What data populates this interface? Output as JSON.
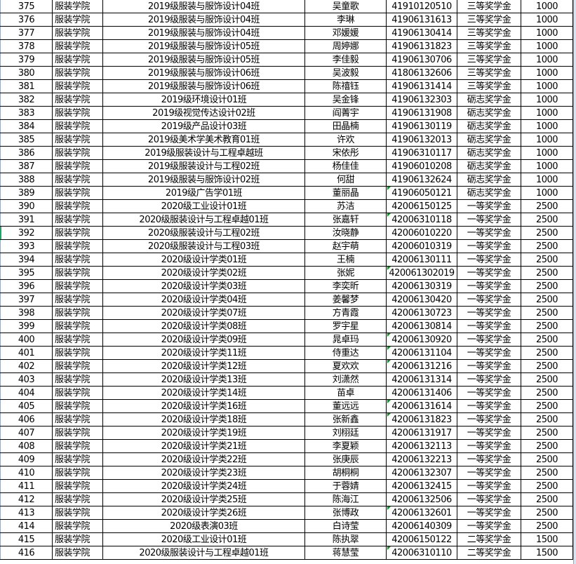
{
  "colors": {
    "grid": "#000000",
    "note_marker": "#1a8a2a",
    "selection": "#21a366"
  },
  "rows": [
    {
      "no": "375",
      "college": "服装学院",
      "class": "2019级服装与服饰设计04班",
      "name": "吴童歌",
      "id": "41910120510",
      "award": "三等奖学金",
      "amount": "1000",
      "flag": false
    },
    {
      "no": "376",
      "college": "服装学院",
      "class": "2019级服装与服饰设计04班",
      "name": "李琳",
      "id": "41906131613",
      "award": "三等奖学金",
      "amount": "1000",
      "flag": false
    },
    {
      "no": "377",
      "college": "服装学院",
      "class": "2019级服装与服饰设计04班",
      "name": "邓媛媛",
      "id": "41906130414",
      "award": "三等奖学金",
      "amount": "1000",
      "flag": false
    },
    {
      "no": "378",
      "college": "服装学院",
      "class": "2019级服装与服饰设计05班",
      "name": "周婷娜",
      "id": "41906131823",
      "award": "三等奖学金",
      "amount": "1000",
      "flag": false
    },
    {
      "no": "379",
      "college": "服装学院",
      "class": "2019级服装与服饰设计05班",
      "name": "李佳毅",
      "id": "41906130706",
      "award": "三等奖学金",
      "amount": "1000",
      "flag": false
    },
    {
      "no": "380",
      "college": "服装学院",
      "class": "2019级服装与服饰设计06班",
      "name": "吴波毅",
      "id": "41806132606",
      "award": "三等奖学金",
      "amount": "1000",
      "flag": false
    },
    {
      "no": "381",
      "college": "服装学院",
      "class": "2019级服装与服饰设计06班",
      "name": "陈禧钰",
      "id": "41906131414",
      "award": "三等奖学金",
      "amount": "1000",
      "flag": false
    },
    {
      "no": "382",
      "college": "服装学院",
      "class": "2019级环境设计01班",
      "name": "吴金锋",
      "id": "41906132303",
      "award": "砺志奖学金",
      "amount": "1000",
      "flag": false
    },
    {
      "no": "383",
      "college": "服装学院",
      "class": "2019级视觉传达设计02班",
      "name": "阎菁宇",
      "id": "41906131908",
      "award": "砺志奖学金",
      "amount": "1000",
      "flag": false
    },
    {
      "no": "384",
      "college": "服装学院",
      "class": "2019级产品设计03班",
      "name": "田晶楠",
      "id": "41906130119",
      "award": "砺志奖学金",
      "amount": "1000",
      "flag": false
    },
    {
      "no": "385",
      "college": "服装学院",
      "class": "2019级美术学美术教育01班",
      "name": "许欢",
      "id": "41906132013",
      "award": "砺志奖学金",
      "amount": "1000",
      "flag": false
    },
    {
      "no": "386",
      "college": "服装学院",
      "class": "2019级服装设计与工程卓越班",
      "name": "宋依彤",
      "id": "41906310117",
      "award": "砺志奖学金",
      "amount": "1000",
      "flag": false
    },
    {
      "no": "387",
      "college": "服装学院",
      "class": "2019级服装设计与工程02班",
      "name": "杨佳佳",
      "id": "41906010208",
      "award": "砺志奖学金",
      "amount": "1000",
      "flag": false
    },
    {
      "no": "388",
      "college": "服装学院",
      "class": "2019级服装与服饰设计02班",
      "name": "何甜",
      "id": "41906132624",
      "award": "砺志奖学金",
      "amount": "1000",
      "flag": false
    },
    {
      "no": "389",
      "college": "服装学院",
      "class": "2019级广告学01班",
      "name": "董丽晶",
      "id": "41906050121",
      "award": "砺志奖学金",
      "amount": "1000",
      "flag": true
    },
    {
      "no": "390",
      "college": "服装学院",
      "class": "2020级工业设计01班",
      "name": "苏洁",
      "id": "42006150125",
      "award": "一等奖学金",
      "amount": "2500",
      "flag": false
    },
    {
      "no": "391",
      "college": "服装学院",
      "class": "2020级服装设计与工程卓越01班",
      "name": "张嘉轩",
      "id": "42006310118",
      "award": "一等奖学金",
      "amount": "2500",
      "flag": true
    },
    {
      "no": "392",
      "college": "服装学院",
      "class": "2020级服装设计与工程02班",
      "name": "汝晓静",
      "id": "42006010220",
      "award": "一等奖学金",
      "amount": "2500",
      "flag": false
    },
    {
      "no": "393",
      "college": "服装学院",
      "class": "2020级服装设计与工程03班",
      "name": "赵宇萌",
      "id": "42006010319",
      "award": "一等奖学金",
      "amount": "2500",
      "flag": false
    },
    {
      "no": "394",
      "college": "服装学院",
      "class": "2020级设计学类01班",
      "name": "王楠",
      "id": "42006130111",
      "award": "一等奖学金",
      "amount": "2500",
      "flag": false
    },
    {
      "no": "395",
      "college": "服装学院",
      "class": "2020级设计学类02班",
      "name": "张妮",
      "id": "420061302019",
      "award": "一等奖学金",
      "amount": "2500",
      "flag": true
    },
    {
      "no": "396",
      "college": "服装学院",
      "class": "2020级设计学类03班",
      "name": "李奕昕",
      "id": "42006130319",
      "award": "一等奖学金",
      "amount": "2500",
      "flag": false
    },
    {
      "no": "397",
      "college": "服装学院",
      "class": "2020级设计学类04班",
      "name": "姜馨梦",
      "id": "42006130420",
      "award": "一等奖学金",
      "amount": "2500",
      "flag": false
    },
    {
      "no": "398",
      "college": "服装学院",
      "class": "2020级设计学类07班",
      "name": "方青霞",
      "id": "42006130723",
      "award": "一等奖学金",
      "amount": "2500",
      "flag": false
    },
    {
      "no": "399",
      "college": "服装学院",
      "class": "2020级设计学类08班",
      "name": "罗宇星",
      "id": "42006130814",
      "award": "一等奖学金",
      "amount": "2500",
      "flag": false
    },
    {
      "no": "400",
      "college": "服装学院",
      "class": "2020级设计学类09班",
      "name": "晁卓玛",
      "id": "42006130920",
      "award": "一等奖学金",
      "amount": "2500",
      "flag": true
    },
    {
      "no": "401",
      "college": "服装学院",
      "class": "2020级设计学类11班",
      "name": "侍重达",
      "id": "42006131104",
      "award": "一等奖学金",
      "amount": "2500",
      "flag": true
    },
    {
      "no": "402",
      "college": "服装学院",
      "class": "2020级设计学类12班",
      "name": "夏欢欢",
      "id": "42006131216",
      "award": "一等奖学金",
      "amount": "2500",
      "flag": true
    },
    {
      "no": "403",
      "college": "服装学院",
      "class": "2020级设计学类13班",
      "name": "刘潇然",
      "id": "42006131314",
      "award": "一等奖学金",
      "amount": "2500",
      "flag": false
    },
    {
      "no": "404",
      "college": "服装学院",
      "class": "2020级设计学类14班",
      "name": "苗卓",
      "id": "42006131406",
      "award": "一等奖学金",
      "amount": "2500",
      "flag": false
    },
    {
      "no": "405",
      "college": "服装学院",
      "class": "2020级设计学类16班",
      "name": "董远远",
      "id": "42006131614",
      "award": "一等奖学金",
      "amount": "2500",
      "flag": true
    },
    {
      "no": "406",
      "college": "服装学院",
      "class": "2020级设计学类18班",
      "name": "张新鑫",
      "id": "42006131823",
      "award": "一等奖学金",
      "amount": "2500",
      "flag": true
    },
    {
      "no": "407",
      "college": "服装学院",
      "class": "2020级设计学类19班",
      "name": "刘栩廷",
      "id": "42006131917",
      "award": "一等奖学金",
      "amount": "2500",
      "flag": false
    },
    {
      "no": "408",
      "college": "服装学院",
      "class": "2020级设计学类21班",
      "name": "李夏颖",
      "id": "42006132113",
      "award": "一等奖学金",
      "amount": "2500",
      "flag": false
    },
    {
      "no": "409",
      "college": "服装学院",
      "class": "2020级设计学类22班",
      "name": "张庚辰",
      "id": "42006132213",
      "award": "一等奖学金",
      "amount": "2500",
      "flag": false
    },
    {
      "no": "410",
      "college": "服装学院",
      "class": "2020级设计学类23班",
      "name": "胡桐桐",
      "id": "42006132307",
      "award": "一等奖学金",
      "amount": "2500",
      "flag": false
    },
    {
      "no": "411",
      "college": "服装学院",
      "class": "2020级设计学类24班",
      "name": "于蓉婧",
      "id": "42006132415",
      "award": "一等奖学金",
      "amount": "2500",
      "flag": false
    },
    {
      "no": "412",
      "college": "服装学院",
      "class": "2020级设计学类25班",
      "name": "陈海江",
      "id": "42006132506",
      "award": "一等奖学金",
      "amount": "2500",
      "flag": false
    },
    {
      "no": "413",
      "college": "服装学院",
      "class": "2020级设计学类26班",
      "name": "张博政",
      "id": "42006132601",
      "award": "一等奖学金",
      "amount": "2500",
      "flag": true
    },
    {
      "no": "414",
      "college": "服装学院",
      "class": "2020级表演03班",
      "name": "白诗莹",
      "id": "42006140309",
      "award": "一等奖学金",
      "amount": "2500",
      "flag": false
    },
    {
      "no": "415",
      "college": "服装学院",
      "class": "2020级工业设计01班",
      "name": "陈执翠",
      "id": "42006150122",
      "award": "二等奖学金",
      "amount": "1500",
      "flag": false
    },
    {
      "no": "416",
      "college": "服装学院",
      "class": "2020级服装设计与工程卓越01班",
      "name": "蒋慧莹",
      "id": "42006310110",
      "award": "二等奖学金",
      "amount": "1500",
      "flag": true
    }
  ]
}
